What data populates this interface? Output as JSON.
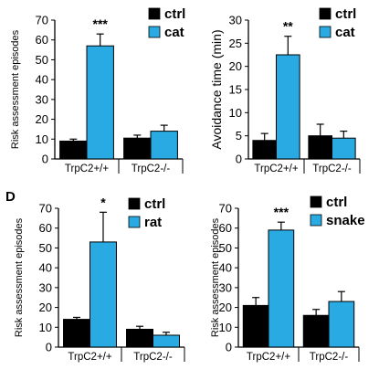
{
  "colors": {
    "ctrl": "#000000",
    "stim": "#29aae2",
    "axis": "#000000"
  },
  "panel_label": "D",
  "chart_data": [
    {
      "type": "bar",
      "ylabel": "Risk assessment episodes",
      "ylim": [
        0,
        70
      ],
      "yticks": [
        0,
        10,
        20,
        30,
        40,
        50,
        60,
        70
      ],
      "categories": [
        "TrpC2+/+",
        "TrpC2-/-"
      ],
      "series": [
        {
          "name": "ctrl",
          "values": [
            9,
            10.5
          ],
          "errors": [
            1,
            1.5
          ]
        },
        {
          "name": "cat",
          "values": [
            57,
            14
          ],
          "errors": [
            6,
            3
          ]
        }
      ],
      "annotations": [
        {
          "text": "***",
          "category": "TrpC2+/+"
        }
      ],
      "legend": "top-right"
    },
    {
      "type": "bar",
      "ylabel": "Avoidance time (min)",
      "ylim": [
        0,
        30
      ],
      "yticks": [
        0,
        5,
        10,
        15,
        20,
        25,
        30
      ],
      "categories": [
        "TrpC2+/+",
        "TrpC2-/-"
      ],
      "series": [
        {
          "name": "ctrl",
          "values": [
            4,
            5
          ],
          "errors": [
            1.5,
            2.5
          ]
        },
        {
          "name": "cat",
          "values": [
            22.5,
            4.5
          ],
          "errors": [
            4,
            1.5
          ]
        }
      ],
      "annotations": [
        {
          "text": "**",
          "category": "TrpC2+/+"
        }
      ],
      "legend": "top-right"
    },
    {
      "type": "bar",
      "ylabel": "Risk assessment episodes",
      "ylim": [
        0,
        70
      ],
      "yticks": [
        0,
        10,
        20,
        30,
        40,
        50,
        60,
        70
      ],
      "categories": [
        "TrpC2+/+",
        "TrpC2-/-"
      ],
      "series": [
        {
          "name": "ctrl",
          "values": [
            14,
            9
          ],
          "errors": [
            1,
            1.5
          ]
        },
        {
          "name": "rat",
          "values": [
            53,
            6
          ],
          "errors": [
            15,
            1.5
          ]
        }
      ],
      "annotations": [
        {
          "text": "*",
          "category": "TrpC2+/+"
        }
      ],
      "legend": "top-right"
    },
    {
      "type": "bar",
      "ylabel": "Risk assessment episodes",
      "ylim": [
        0,
        70
      ],
      "yticks": [
        0,
        10,
        20,
        30,
        40,
        50,
        60,
        70
      ],
      "categories": [
        "TrpC2+/+",
        "TrpC2-/-"
      ],
      "series": [
        {
          "name": "ctrl",
          "values": [
            21,
            16
          ],
          "errors": [
            4,
            3
          ]
        },
        {
          "name": "snake",
          "values": [
            59,
            23
          ],
          "errors": [
            4,
            5
          ]
        }
      ],
      "annotations": [
        {
          "text": "***",
          "category": "TrpC2+/+"
        }
      ],
      "legend": "top-right"
    }
  ]
}
